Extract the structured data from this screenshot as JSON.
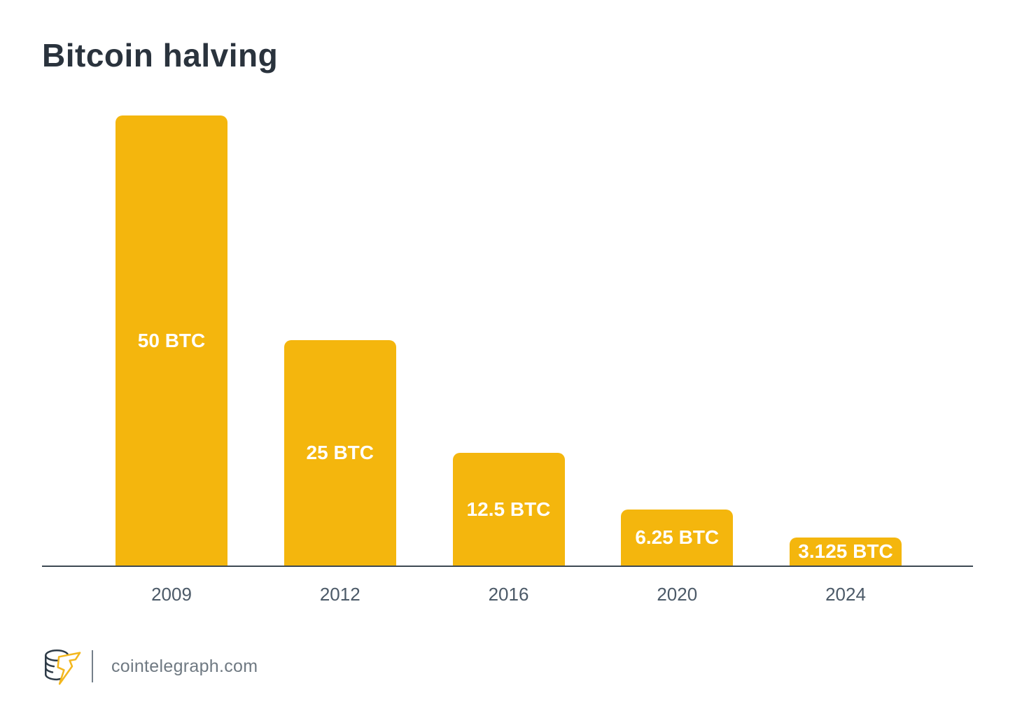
{
  "page": {
    "background": "#FFFFFF"
  },
  "chart_data": {
    "type": "bar",
    "title": "Bitcoin halving",
    "categories": [
      "2009",
      "2012",
      "2016",
      "2020",
      "2024"
    ],
    "values": [
      50,
      25,
      12.5,
      6.25,
      3.125
    ],
    "bar_labels": [
      "50 BTC",
      "25 BTC",
      "12.5 BTC",
      "6.25 BTC",
      "3.125 BTC"
    ],
    "xlabel": "",
    "ylabel": "",
    "ylim": [
      0,
      50
    ],
    "grid": false,
    "legend": null,
    "bar_color": "#F4B60D",
    "bar_label_color": "#FFFFFF",
    "axis_color": "#3D4953",
    "tick_color": "#4C5A68",
    "title_color": "#2A333D"
  },
  "footer": {
    "logo": "cointelegraph-coin-lightning-logo",
    "site": "cointelegraph.com",
    "text_color": "#6F7982",
    "logo_bolt_color": "#F3B71E",
    "logo_coin_color": "#2E3B47"
  }
}
